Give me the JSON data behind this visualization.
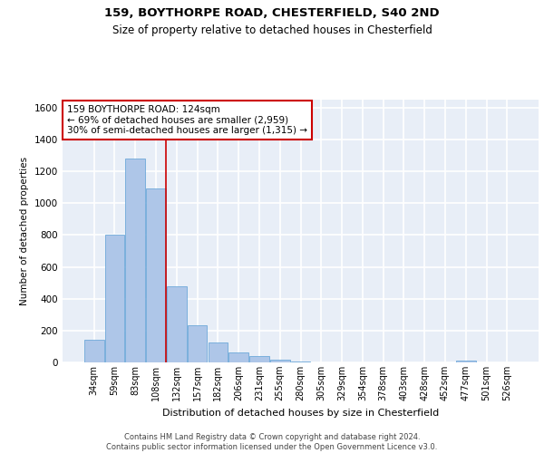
{
  "title1": "159, BOYTHORPE ROAD, CHESTERFIELD, S40 2ND",
  "title2": "Size of property relative to detached houses in Chesterfield",
  "xlabel": "Distribution of detached houses by size in Chesterfield",
  "ylabel": "Number of detached properties",
  "footer1": "Contains HM Land Registry data © Crown copyright and database right 2024.",
  "footer2": "Contains public sector information licensed under the Open Government Licence v3.0.",
  "bar_labels": [
    "34sqm",
    "59sqm",
    "83sqm",
    "108sqm",
    "132sqm",
    "157sqm",
    "182sqm",
    "206sqm",
    "231sqm",
    "255sqm",
    "280sqm",
    "305sqm",
    "329sqm",
    "354sqm",
    "378sqm",
    "403sqm",
    "428sqm",
    "452sqm",
    "477sqm",
    "501sqm",
    "526sqm"
  ],
  "bar_values": [
    140,
    800,
    1280,
    1090,
    480,
    235,
    125,
    60,
    38,
    18,
    8,
    2,
    1,
    0,
    0,
    0,
    0,
    0,
    12,
    0,
    0
  ],
  "bar_color": "#aec6e8",
  "bar_edge_color": "#5a9fd4",
  "background_color": "#e8eef7",
  "grid_color": "#ffffff",
  "ref_line_color": "#cc0000",
  "annotation_text": "159 BOYTHORPE ROAD: 124sqm\n← 69% of detached houses are smaller (2,959)\n30% of semi-detached houses are larger (1,315) →",
  "annotation_box_color": "#ffffff",
  "annotation_box_edge_color": "#cc0000",
  "ylim": [
    0,
    1650
  ],
  "yticks": [
    0,
    200,
    400,
    600,
    800,
    1000,
    1200,
    1400,
    1600
  ]
}
